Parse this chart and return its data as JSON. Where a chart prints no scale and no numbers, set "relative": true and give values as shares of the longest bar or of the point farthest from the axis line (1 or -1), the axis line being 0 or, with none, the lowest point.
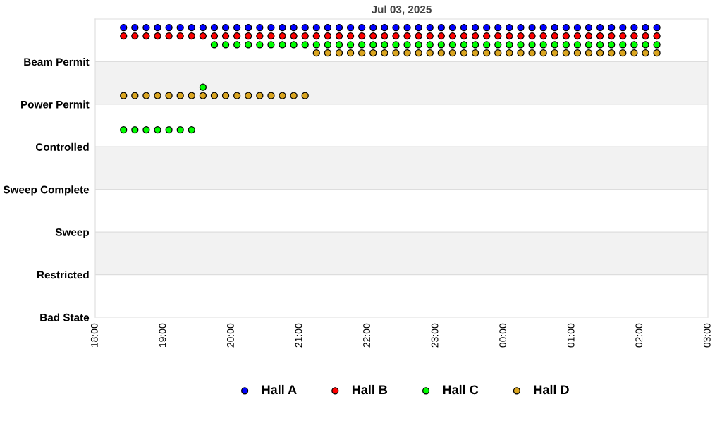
{
  "chart_data": {
    "type": "scatter",
    "title": "Jul 03, 2025",
    "relative": true,
    "x": [
      "2025-07-03T18:25",
      "2025-07-03T18:35",
      "2025-07-03T18:45",
      "2025-07-03T18:55",
      "2025-07-03T19:05",
      "2025-07-03T19:15",
      "2025-07-03T19:25",
      "2025-07-03T19:35",
      "2025-07-03T19:45",
      "2025-07-03T19:55",
      "2025-07-03T20:05",
      "2025-07-03T20:15",
      "2025-07-03T20:25",
      "2025-07-03T20:35",
      "2025-07-03T20:45",
      "2025-07-03T20:55",
      "2025-07-03T21:05",
      "2025-07-03T21:15",
      "2025-07-03T21:25",
      "2025-07-03T21:35",
      "2025-07-03T21:45",
      "2025-07-03T21:55",
      "2025-07-03T22:05",
      "2025-07-03T22:15",
      "2025-07-03T22:25",
      "2025-07-03T22:35",
      "2025-07-03T22:45",
      "2025-07-03T22:55",
      "2025-07-03T23:05",
      "2025-07-03T23:15",
      "2025-07-03T23:25",
      "2025-07-03T23:35",
      "2025-07-03T23:45",
      "2025-07-03T23:55",
      "2025-07-04T00:05",
      "2025-07-04T00:15",
      "2025-07-04T00:25",
      "2025-07-04T00:35",
      "2025-07-04T00:45",
      "2025-07-04T00:55",
      "2025-07-04T01:05",
      "2025-07-04T01:15",
      "2025-07-04T01:25",
      "2025-07-04T01:35",
      "2025-07-04T01:45",
      "2025-07-04T01:55",
      "2025-07-04T02:05",
      "2025-07-04T02:15"
    ],
    "series": [
      {
        "name": "Hall A",
        "color": "#0000ff",
        "values": [
          1,
          1,
          1,
          1,
          1,
          1,
          1,
          1,
          1,
          1,
          1,
          1,
          1,
          1,
          1,
          1,
          1,
          1,
          1,
          1,
          1,
          1,
          1,
          1,
          1,
          1,
          1,
          1,
          1,
          1,
          1,
          1,
          1,
          1,
          1,
          1,
          1,
          1,
          1,
          1,
          1,
          1,
          1,
          1,
          1,
          1,
          1,
          1
        ]
      },
      {
        "name": "Hall B",
        "color": "#ff0000",
        "values": [
          0.971,
          0.971,
          0.971,
          0.971,
          0.971,
          0.971,
          0.971,
          0.971,
          0.971,
          0.971,
          0.971,
          0.971,
          0.971,
          0.971,
          0.971,
          0.971,
          0.971,
          0.971,
          0.971,
          0.971,
          0.971,
          0.971,
          0.971,
          0.971,
          0.971,
          0.971,
          0.971,
          0.971,
          0.971,
          0.971,
          0.971,
          0.971,
          0.971,
          0.971,
          0.971,
          0.971,
          0.971,
          0.971,
          0.971,
          0.971,
          0.971,
          0.971,
          0.971,
          0.971,
          0.971,
          0.971,
          0.971,
          0.971
        ]
      },
      {
        "name": "Hall C",
        "color": "#00ff00",
        "values": [
          0.647,
          0.647,
          0.647,
          0.647,
          0.647,
          0.647,
          0.647,
          0.794,
          0.941,
          0.941,
          0.941,
          0.941,
          0.941,
          0.941,
          0.941,
          0.941,
          0.941,
          0.941,
          0.941,
          0.941,
          0.941,
          0.941,
          0.941,
          0.941,
          0.941,
          0.941,
          0.941,
          0.941,
          0.941,
          0.941,
          0.941,
          0.941,
          0.941,
          0.941,
          0.941,
          0.941,
          0.941,
          0.941,
          0.941,
          0.941,
          0.941,
          0.941,
          0.941,
          0.941,
          0.941,
          0.941,
          0.941,
          0.941
        ]
      },
      {
        "name": "Hall D",
        "color": "#daa520",
        "values": [
          0.765,
          0.765,
          0.765,
          0.765,
          0.765,
          0.765,
          0.765,
          0.765,
          0.765,
          0.765,
          0.765,
          0.765,
          0.765,
          0.765,
          0.765,
          0.765,
          0.765,
          0.912,
          0.912,
          0.912,
          0.912,
          0.912,
          0.912,
          0.912,
          0.912,
          0.912,
          0.912,
          0.912,
          0.912,
          0.912,
          0.912,
          0.912,
          0.912,
          0.912,
          0.912,
          0.912,
          0.912,
          0.912,
          0.912,
          0.912,
          0.912,
          0.912,
          0.912,
          0.912,
          0.912,
          0.912,
          0.912,
          0.912
        ]
      }
    ],
    "xlim": [
      "2025-07-03T18:00",
      "2025-07-04T03:00"
    ],
    "xticks": [
      {
        "value": "2025-07-03T18:00",
        "label": "18:00"
      },
      {
        "value": "2025-07-03T19:00",
        "label": "19:00"
      },
      {
        "value": "2025-07-03T20:00",
        "label": "20:00"
      },
      {
        "value": "2025-07-03T21:00",
        "label": "21:00"
      },
      {
        "value": "2025-07-03T22:00",
        "label": "22:00"
      },
      {
        "value": "2025-07-03T23:00",
        "label": "23:00"
      },
      {
        "value": "2025-07-04T00:00",
        "label": "00:00"
      },
      {
        "value": "2025-07-04T01:00",
        "label": "01:00"
      },
      {
        "value": "2025-07-04T02:00",
        "label": "02:00"
      },
      {
        "value": "2025-07-04T03:00",
        "label": "03:00"
      }
    ],
    "y_categories": [
      "Beam Permit",
      "Power Permit",
      "Controlled",
      "Sweep Complete",
      "Sweep",
      "Restricted",
      "Bad State"
    ],
    "grid": "y",
    "marker": "circle",
    "legend": "bottom"
  }
}
